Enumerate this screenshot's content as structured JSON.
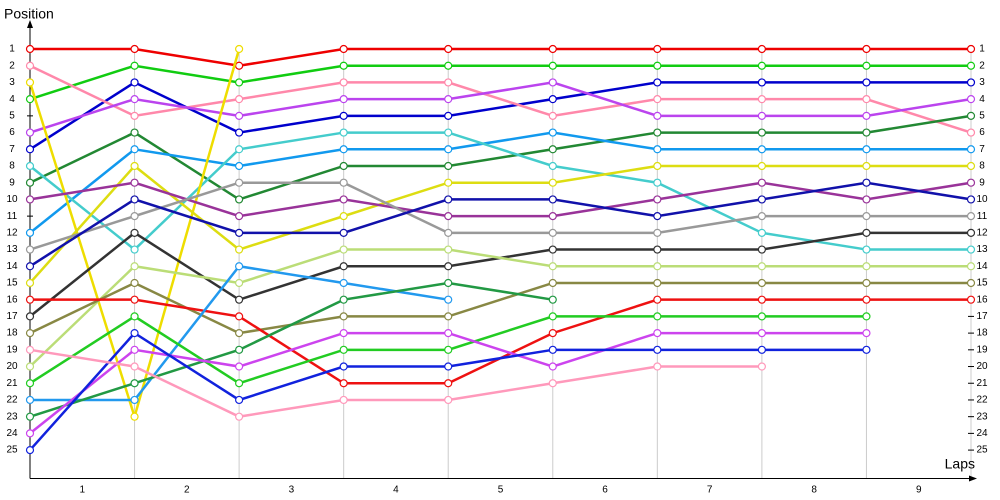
{
  "chart_data": {
    "type": "line",
    "ylabel": "Position",
    "xlabel": "Laps",
    "x": [
      0,
      1,
      2,
      3,
      4,
      5,
      6,
      7,
      8,
      9
    ],
    "xlim": [
      0,
      9
    ],
    "xticks": [
      {
        "value": 0.5,
        "label": "1"
      },
      {
        "value": 1.5,
        "label": "2"
      },
      {
        "value": 2.5,
        "label": "3"
      },
      {
        "value": 3.5,
        "label": "4"
      },
      {
        "value": 4.5,
        "label": "5"
      },
      {
        "value": 5.5,
        "label": "6"
      },
      {
        "value": 6.5,
        "label": "7"
      },
      {
        "value": 7.5,
        "label": "8"
      },
      {
        "value": 8.5,
        "label": "9"
      }
    ],
    "ylim": [
      26.7,
      0
    ],
    "inverted": true,
    "yticks": [
      1,
      2,
      3,
      4,
      5,
      6,
      7,
      8,
      9,
      10,
      11,
      12,
      13,
      14,
      15,
      16,
      17,
      18,
      19,
      20,
      21,
      22,
      23,
      24,
      25
    ],
    "grid": true,
    "series": [
      {
        "color": "#ee0000",
        "values": [
          1,
          1,
          2,
          1,
          1,
          1,
          1,
          1,
          1,
          1
        ]
      },
      {
        "color": "#11cc11",
        "values": [
          4,
          2,
          3,
          2,
          2,
          2,
          2,
          2,
          2,
          2
        ]
      },
      {
        "color": "#0000cc",
        "values": [
          7,
          3,
          6,
          5,
          5,
          4,
          3,
          3,
          3,
          3
        ]
      },
      {
        "color": "#ff88aa",
        "values": [
          2,
          5,
          4,
          3,
          3,
          5,
          4,
          4,
          4,
          6
        ]
      },
      {
        "color": "#bb44ee",
        "values": [
          6,
          4,
          5,
          4,
          4,
          3,
          5,
          5,
          5,
          4
        ]
      },
      {
        "color": "#228833",
        "values": [
          9,
          6,
          10,
          8,
          8,
          7,
          6,
          6,
          6,
          5
        ]
      },
      {
        "color": "#1199ee",
        "values": [
          12,
          7,
          8,
          7,
          7,
          6,
          7,
          7,
          7,
          7
        ]
      },
      {
        "color": "#44cccc",
        "values": [
          8,
          13,
          7,
          6,
          6,
          8,
          9,
          12,
          13,
          13
        ]
      },
      {
        "color": "#eedd00",
        "values": [
          3,
          23,
          1,
          null,
          null,
          null,
          null,
          null,
          null,
          null
        ]
      },
      {
        "color": "#dddd11",
        "values": [
          15,
          8,
          13,
          11,
          9,
          9,
          8,
          8,
          8,
          8
        ]
      },
      {
        "color": "#993399",
        "values": [
          10,
          9,
          11,
          10,
          11,
          11,
          10,
          9,
          10,
          9
        ]
      },
      {
        "color": "#999999",
        "values": [
          13,
          11,
          9,
          9,
          12,
          12,
          12,
          11,
          11,
          11
        ]
      },
      {
        "color": "#1111aa",
        "values": [
          14,
          10,
          12,
          12,
          10,
          10,
          11,
          10,
          9,
          10
        ]
      },
      {
        "color": "#333333",
        "values": [
          17,
          12,
          16,
          14,
          14,
          13,
          13,
          13,
          12,
          12
        ]
      },
      {
        "color": "#bbdd77",
        "values": [
          20,
          14,
          15,
          13,
          13,
          14,
          14,
          14,
          14,
          14
        ]
      },
      {
        "color": "#888844",
        "values": [
          18,
          15,
          18,
          17,
          17,
          15,
          15,
          15,
          15,
          15
        ]
      },
      {
        "color": "#ee1111",
        "values": [
          16,
          16,
          17,
          21,
          21,
          18,
          16,
          16,
          16,
          16
        ]
      },
      {
        "color": "#2299ee",
        "values": [
          22,
          22,
          14,
          15,
          16,
          null,
          null,
          null,
          null,
          null
        ]
      },
      {
        "color": "#22cc22",
        "values": [
          21,
          17,
          21,
          19,
          19,
          17,
          17,
          17,
          17,
          null
        ]
      },
      {
        "color": "#229944",
        "values": [
          23,
          21,
          19,
          16,
          15,
          16,
          null,
          null,
          null,
          null
        ]
      },
      {
        "color": "#cc44ee",
        "values": [
          24,
          19,
          20,
          18,
          18,
          20,
          18,
          18,
          18,
          null
        ]
      },
      {
        "color": "#1122dd",
        "values": [
          25,
          18,
          22,
          20,
          20,
          19,
          19,
          19,
          19,
          null
        ]
      },
      {
        "color": "#ff99bb",
        "values": [
          19,
          20,
          23,
          22,
          22,
          21,
          20,
          20,
          null,
          null
        ]
      }
    ]
  }
}
